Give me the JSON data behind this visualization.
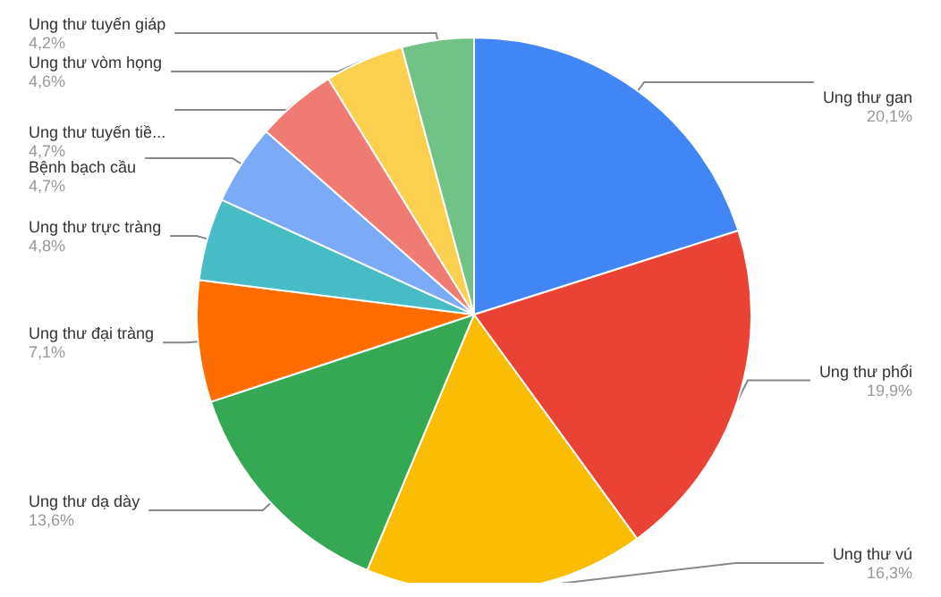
{
  "chart_data": {
    "type": "pie",
    "categories": [
      "Ung thư gan",
      "Ung thư phổi",
      "Ung thư vú",
      "Ung thư dạ dày",
      "Ung thư đại tràng",
      "Ung thư trực tràng",
      "Bệnh bạch cầu",
      "Ung thư tuyến tiề...",
      "Ung thư vòm họng",
      "Ung thư tuyến giáp"
    ],
    "values": [
      20.1,
      19.9,
      16.3,
      13.6,
      7.1,
      4.8,
      4.7,
      4.7,
      4.6,
      4.2
    ],
    "colors": [
      "#4285f4",
      "#ea4335",
      "#fbbc04",
      "#34a853",
      "#ff6d01",
      "#46bdc6",
      "#7baaf7",
      "#f07b72",
      "#fcd04f",
      "#71c287"
    ],
    "value_labels": [
      "20,1%",
      "19,9%",
      "16,3%",
      "13,6%",
      "7,1%",
      "4,8%",
      "4,7%",
      "4,7%",
      "4,6%",
      "4,2%"
    ],
    "legend": false
  }
}
